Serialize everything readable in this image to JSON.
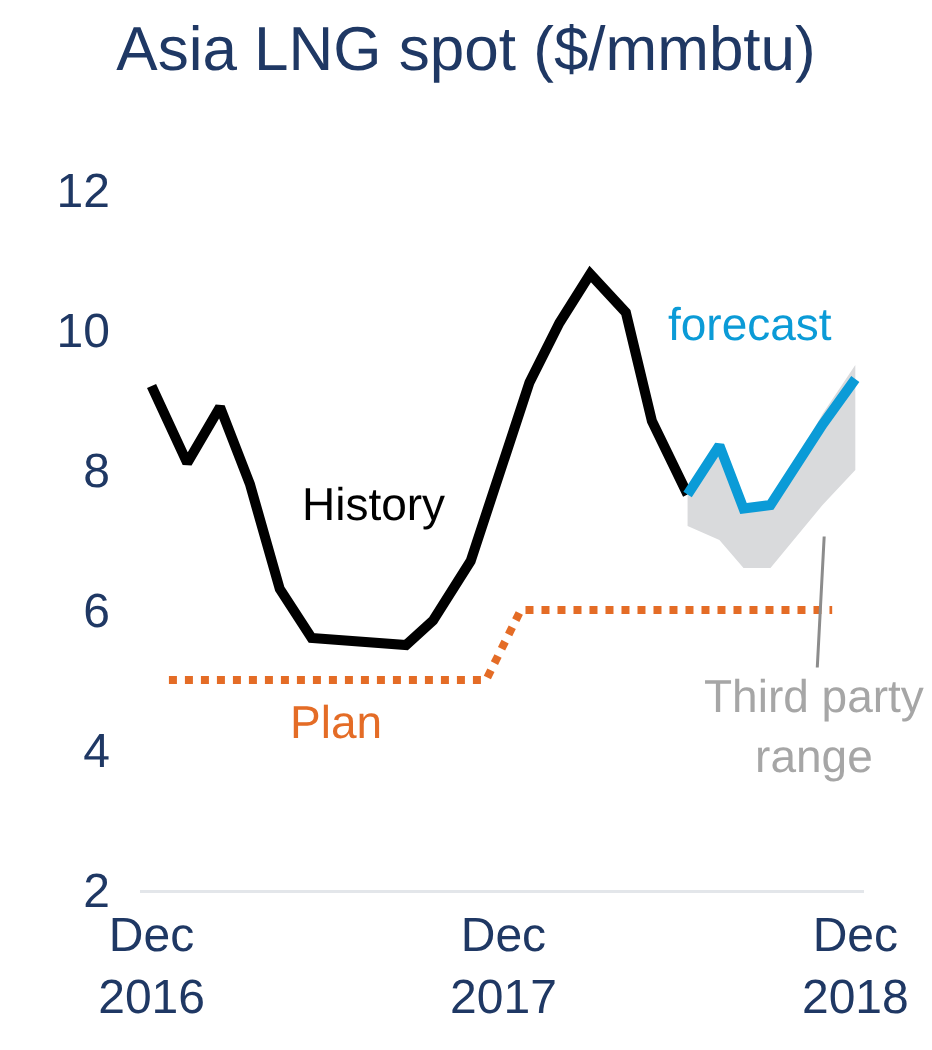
{
  "chart_data": {
    "type": "line",
    "title": "Asia LNG spot ($/mmbtu)",
    "xlim": [
      "2016-11-19",
      "2018-12-10"
    ],
    "xticks": [
      {
        "value": "2016-12-01",
        "label": "Dec\n2016"
      },
      {
        "value": "2017-12-01",
        "label": "Dec\n2017"
      },
      {
        "value": "2018-12-01",
        "label": "Dec\n2018"
      }
    ],
    "ylim": [
      2,
      12
    ],
    "yticks": [
      2,
      4,
      6,
      8,
      10,
      12
    ],
    "series": [
      {
        "color": "#000000",
        "line_style": "solid",
        "x": [
          "2016-12-01",
          "2017-01-07",
          "2017-02-10",
          "2017-03-13",
          "2017-04-13",
          "2017-05-16",
          "2017-08-22",
          "2017-09-19",
          "2017-10-28",
          "2017-12-28",
          "2018-01-28",
          "2018-03-01",
          "2018-04-07",
          "2018-05-04",
          "2018-06-10"
        ],
        "values": [
          9.2,
          8.1,
          8.9,
          7.8,
          6.3,
          5.6,
          5.5,
          5.85,
          6.7,
          9.25,
          10.1,
          10.8,
          10.25,
          8.7,
          7.65
        ]
      },
      {
        "color": "#0b9bd7",
        "line_style": "solid",
        "x": [
          "2018-06-10",
          "2018-07-13",
          "2018-08-07",
          "2018-09-04",
          "2018-10-28",
          "2018-12-01"
        ],
        "values": [
          7.65,
          8.35,
          7.45,
          7.5,
          8.65,
          9.3
        ],
        "lower": [
          7.2,
          7.0,
          6.6,
          6.6,
          7.5,
          8.0
        ],
        "upper": [
          7.7,
          8.35,
          7.45,
          7.5,
          8.8,
          9.5
        ]
      },
      {
        "color": "#e46c26",
        "line_style": "dotted",
        "x": [
          "2016-12-19",
          "2017-11-13",
          "2017-12-19",
          "2018-11-07"
        ],
        "values": [
          5.0,
          5.0,
          6.0,
          6.0
        ]
      }
    ],
    "annotations": [
      "History",
      "Plan",
      "forecast",
      "Third party\nrange"
    ]
  }
}
